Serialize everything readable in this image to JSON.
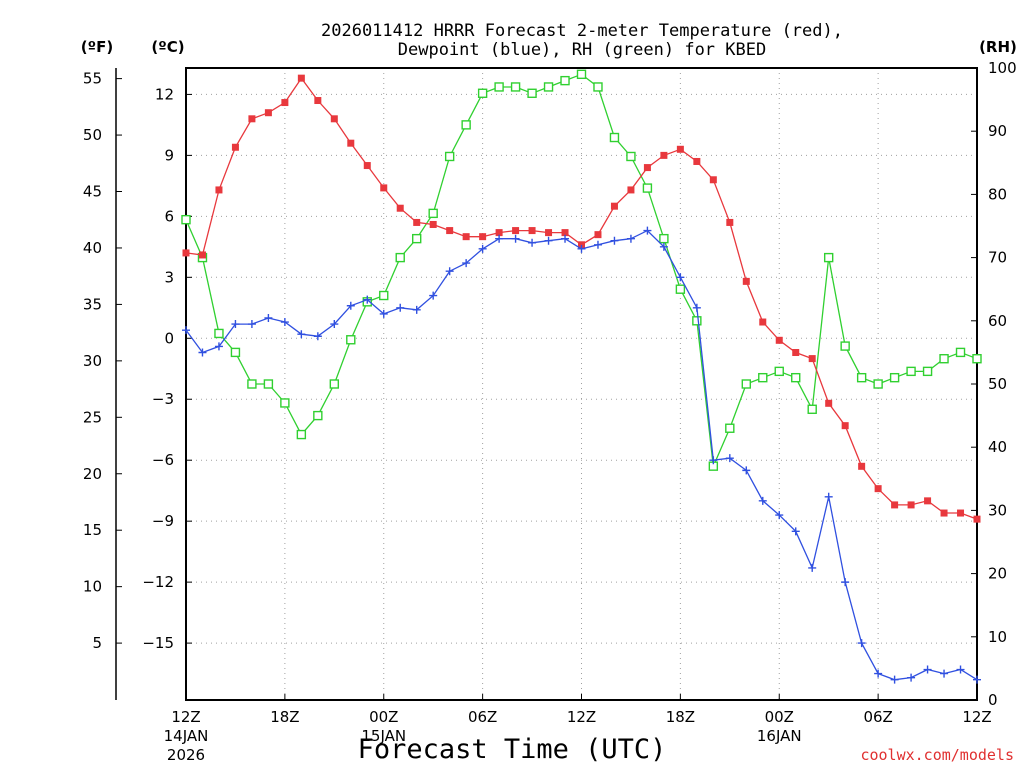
{
  "chart_data": {
    "type": "line",
    "title_line1": "2026011412 HRRR Forecast 2-meter Temperature (red),",
    "title_line2": "Dewpoint (blue), RH (green) for KBED",
    "xlabel": "Forecast Time (UTC)",
    "credit": "coolwx.com/models",
    "units": {
      "fahrenheit": "(ºF)",
      "celsius": "(ºC)",
      "rh": "(RH)"
    },
    "x_range_hours": [
      0,
      48
    ],
    "x_ticks": [
      {
        "h": 0,
        "label": "12Z",
        "sub1": "14JAN",
        "sub2": "2026"
      },
      {
        "h": 6,
        "label": "18Z",
        "sub1": "",
        "sub2": ""
      },
      {
        "h": 12,
        "label": "00Z",
        "sub1": "15JAN",
        "sub2": ""
      },
      {
        "h": 18,
        "label": "06Z",
        "sub1": "",
        "sub2": ""
      },
      {
        "h": 24,
        "label": "12Z",
        "sub1": "",
        "sub2": ""
      },
      {
        "h": 30,
        "label": "18Z",
        "sub1": "",
        "sub2": ""
      },
      {
        "h": 36,
        "label": "00Z",
        "sub1": "16JAN",
        "sub2": ""
      },
      {
        "h": 42,
        "label": "06Z",
        "sub1": "",
        "sub2": ""
      },
      {
        "h": 48,
        "label": "12Z",
        "sub1": "",
        "sub2": ""
      }
    ],
    "celsius_axis": {
      "range": [
        -17.8,
        13.3
      ],
      "ticks": [
        12,
        9,
        6,
        3,
        0,
        -3,
        -6,
        -9,
        -12,
        -15
      ]
    },
    "fahrenheit_axis": {
      "ticks": [
        55,
        50,
        45,
        40,
        35,
        30,
        25,
        20,
        15,
        10,
        5
      ]
    },
    "rh_axis": {
      "range": [
        0,
        100
      ],
      "ticks": [
        100,
        90,
        80,
        70,
        60,
        50,
        40,
        30,
        20,
        10,
        0
      ]
    },
    "grid": true,
    "series": [
      {
        "name": "2-meter Temperature",
        "color": "#e8383d",
        "marker": "filled-square",
        "axis": "celsius",
        "values": [
          4.2,
          4.1,
          7.3,
          9.4,
          10.8,
          11.1,
          11.6,
          12.8,
          11.7,
          10.8,
          9.6,
          8.5,
          7.4,
          6.4,
          5.7,
          5.6,
          5.3,
          5.0,
          5.0,
          5.2,
          5.3,
          5.3,
          5.2,
          5.2,
          4.6,
          5.1,
          6.5,
          7.3,
          8.4,
          9.0,
          9.3,
          8.7,
          7.8,
          5.7,
          2.8,
          0.8,
          -0.1,
          -0.7,
          -1.0,
          -3.2,
          -4.3,
          -6.3,
          -7.4,
          -8.2,
          -8.2,
          -8.0,
          -8.6,
          -8.6,
          -8.9
        ]
      },
      {
        "name": "Dewpoint",
        "color": "#3050e0",
        "marker": "plus",
        "axis": "celsius",
        "values": [
          0.4,
          -0.7,
          -0.4,
          0.7,
          0.7,
          1.0,
          0.8,
          0.2,
          0.1,
          0.7,
          1.6,
          1.9,
          1.2,
          1.5,
          1.4,
          2.1,
          3.3,
          3.7,
          4.4,
          4.9,
          4.9,
          4.7,
          4.8,
          4.9,
          4.4,
          4.6,
          4.8,
          4.9,
          5.3,
          4.5,
          3.0,
          1.5,
          -6.0,
          -5.9,
          -6.5,
          -8.0,
          -8.7,
          -9.5,
          -11.3,
          -7.8,
          -12.0,
          -15.0,
          -16.5,
          -16.8,
          -16.7,
          -16.3,
          -16.5,
          -16.3,
          -16.8
        ]
      },
      {
        "name": "RH",
        "color": "#30d030",
        "marker": "open-square",
        "axis": "rh",
        "values": [
          76,
          70,
          58,
          55,
          50,
          50,
          47,
          42,
          45,
          50,
          57,
          63,
          64,
          70,
          73,
          77,
          86,
          91,
          96,
          97,
          97,
          96,
          97,
          98,
          99,
          97,
          89,
          86,
          81,
          73,
          65,
          60,
          37,
          43,
          50,
          51,
          52,
          51,
          46,
          70,
          56,
          51,
          50,
          51,
          52,
          52,
          54,
          55,
          54
        ]
      }
    ]
  }
}
